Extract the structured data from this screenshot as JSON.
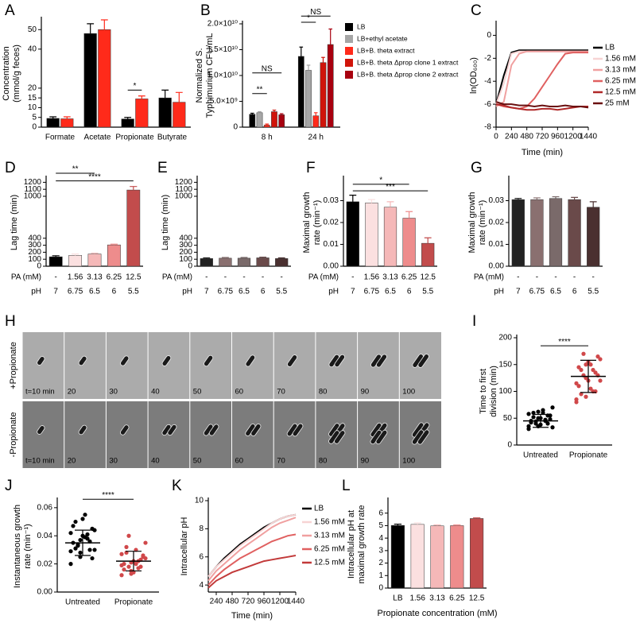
{
  "chart_data": [
    {
      "panel": "A",
      "type": "bar",
      "ylabel": [
        "Concentration",
        "(mmol/g feces)"
      ],
      "categories": [
        "Formate",
        "Acetate",
        "Propionate",
        "Butyrate"
      ],
      "series": [
        {
          "color": "#000000",
          "values": [
            4.5,
            48,
            4.2,
            15
          ],
          "errors": [
            0.8,
            5,
            0.8,
            4
          ]
        },
        {
          "color": "#ff2a1a",
          "values": [
            4.3,
            50,
            14.5,
            12.8
          ],
          "errors": [
            1,
            5,
            1.5,
            5
          ]
        }
      ],
      "ylim": [
        0,
        55
      ],
      "yticks": [
        0,
        5,
        10,
        15,
        20,
        40,
        50
      ],
      "annotations": [
        {
          "text": "*"
        }
      ]
    },
    {
      "panel": "B",
      "type": "bar",
      "ylabel": [
        "Normalized S.",
        "Typhimurium CFU/mL"
      ],
      "categories": [
        "8 h",
        "24 h"
      ],
      "series": [
        {
          "name": "LB",
          "color": "#000000",
          "values": [
            2500000000,
            13700000000
          ],
          "errors": [
            200000000,
            1800000000
          ]
        },
        {
          "name": "LB+ethyl acetate",
          "color": "#a6a6a6",
          "values": [
            2800000000,
            11000000000
          ],
          "errors": [
            200000000,
            1000000000
          ]
        },
        {
          "name": "LB+B. theta extract",
          "color": "#ff2a1a",
          "values": [
            400000000,
            2200000000
          ],
          "errors": [
            200000000,
            600000000
          ]
        },
        {
          "name": "LB+B. theta Δprop clone 1 extract",
          "color": "#d0140a",
          "values": [
            3000000000,
            12500000000
          ],
          "errors": [
            300000000,
            1000000000
          ]
        },
        {
          "name": "LB+B. theta Δprop clone 2 extract",
          "color": "#a8000f",
          "values": [
            2400000000,
            16000000000
          ],
          "errors": [
            200000000,
            3000000000
          ]
        }
      ],
      "ylim": [
        0,
        20000000000
      ],
      "yticks": [
        0,
        {
          "value": 5000000000,
          "label": "5.0×10⁹"
        },
        {
          "value": 10000000000,
          "label": "1.0×10¹⁰"
        },
        {
          "value": 15000000000,
          "label": "1.5×10¹⁰"
        },
        {
          "value": 20000000000,
          "label": "2.0×10¹⁰"
        }
      ],
      "annotations": [
        {
          "text": "NS"
        },
        {
          "text": "**"
        },
        {
          "text": "NS"
        },
        {
          "text": "*"
        }
      ]
    },
    {
      "panel": "C",
      "type": "line",
      "ylabel": [
        "ln(OD₆₀₀)"
      ],
      "xlabel": "Time (min)",
      "x": [
        0,
        120,
        240,
        360,
        480,
        600,
        720,
        840,
        960,
        1080,
        1200,
        1320,
        1440
      ],
      "series": [
        {
          "name": "LB",
          "color": "#000000",
          "values": [
            -6,
            -3.5,
            -1.5,
            -1.3,
            -1.3,
            -1.3,
            -1.3,
            -1.3,
            -1.3,
            -1.3,
            -1.3,
            -1.3,
            -1.3
          ]
        },
        {
          "name": "1.56 mM",
          "color": "#f7d4d4",
          "values": [
            -6,
            -4.2,
            -1.6,
            -1.4,
            -1.4,
            -1.4,
            -1.4,
            -1.4,
            -1.4,
            -1.4,
            -1.4,
            -1.4,
            -1.4
          ]
        },
        {
          "name": "3.13 mM",
          "color": "#f0a0a0",
          "values": [
            -6.2,
            -5.8,
            -2.6,
            -1.6,
            -1.4,
            -1.4,
            -1.4,
            -1.4,
            -1.4,
            -1.4,
            -1.4,
            -1.4,
            -1.4
          ]
        },
        {
          "name": "6.25 mM",
          "color": "#e06060",
          "values": [
            -6,
            -6.2,
            -6.3,
            -6.4,
            -6.2,
            -5.5,
            -4.5,
            -3.5,
            -2.5,
            -1.6,
            -1.5,
            -1.5,
            -1.5
          ]
        },
        {
          "name": "12.5 mM",
          "color": "#b02828",
          "values": [
            -6,
            -6.1,
            -6.3,
            -6.4,
            -6.5,
            -6.5,
            -6.4,
            -6.4,
            -6.5,
            -6.4,
            -6.3,
            -6.2,
            -6.2
          ]
        },
        {
          "name": "25 mM",
          "color": "#6a1010",
          "values": [
            -5.8,
            -6,
            -6,
            -6.1,
            -6.1,
            -6.2,
            -6.1,
            -6.2,
            -6.2,
            -6.1,
            -6.2,
            -6.2,
            -6.3
          ]
        }
      ],
      "xlim": [
        0,
        1440
      ],
      "xticks": [
        0,
        240,
        480,
        720,
        960,
        1200,
        1440
      ],
      "ylim": [
        -8,
        1
      ],
      "yticks": [
        -8,
        -6,
        -4,
        -2,
        0
      ]
    },
    {
      "panel": "D",
      "type": "bar",
      "ylabel": [
        "Lag time (min)"
      ],
      "table": {
        "labels": [
          "PA (mM)",
          "pH"
        ],
        "rows": [
          [
            "-",
            "1.56",
            "3.13",
            "6.25",
            "12.5"
          ],
          [
            "7",
            "6.75",
            "6.5",
            "6",
            "5.5"
          ]
        ]
      },
      "series": [
        {
          "colors": [
            "#000000",
            "#fbe0e0",
            "#f5b8b8",
            "#ee8c8c",
            "#c24c4c"
          ],
          "values": [
            135,
            155,
            175,
            305,
            1090
          ],
          "errors": [
            15,
            20,
            12,
            10,
            50
          ]
        }
      ],
      "ylim": [
        0,
        1250
      ],
      "yticks": [
        0,
        100,
        200,
        300,
        400,
        1000,
        1100,
        1200
      ],
      "annotations": [
        {
          "text": "**"
        },
        {
          "text": "****"
        }
      ]
    },
    {
      "panel": "E",
      "type": "bar",
      "ylabel": [
        "Lag time (min)"
      ],
      "table": {
        "labels": [
          "PA (mM)",
          "pH"
        ],
        "rows": [
          [
            "-",
            "-",
            "-",
            "-",
            "-"
          ],
          [
            "7",
            "6.75",
            "6.5",
            "6",
            "5.5"
          ]
        ]
      },
      "series": [
        {
          "colors": [
            "#222222",
            "#8a7070",
            "#7a6a6a",
            "#6a4a4a",
            "#4a3030"
          ],
          "values": [
            110,
            115,
            115,
            120,
            110
          ],
          "errors": [
            10,
            10,
            10,
            10,
            10
          ]
        }
      ],
      "ylim": [
        0,
        1250
      ],
      "yticks": [
        0,
        100,
        200,
        300,
        400,
        1000,
        1100,
        1200
      ]
    },
    {
      "panel": "F",
      "type": "bar",
      "ylabel": [
        "Maximal growth",
        "rate (min⁻¹)"
      ],
      "table": {
        "labels": [
          "PA (mM)",
          "pH"
        ],
        "rows": [
          [
            "-",
            "1.56",
            "3.13",
            "6.25",
            "12.5"
          ],
          [
            "7",
            "6.75",
            "6.5",
            "6",
            "5.5"
          ]
        ]
      },
      "series": [
        {
          "colors": [
            "#000000",
            "#fbe0e0",
            "#f5b8b8",
            "#ee8c8c",
            "#c24c4c"
          ],
          "values": [
            0.0295,
            0.029,
            0.027,
            0.022,
            0.0105
          ],
          "errors": [
            0.003,
            0.0015,
            0.0025,
            0.003,
            0.0025
          ]
        }
      ],
      "ylim": [
        0,
        0.04
      ],
      "yticks": [
        {
          "value": 0,
          "label": "0.00"
        },
        0.01,
        0.02,
        0.03
      ],
      "annotations": [
        {
          "text": "*"
        },
        {
          "text": "***"
        }
      ]
    },
    {
      "panel": "G",
      "type": "bar",
      "ylabel": [
        "Maximal growth",
        "rate (min⁻¹)"
      ],
      "table": {
        "labels": [
          "PA (mM)",
          "pH"
        ],
        "rows": [
          [
            "-",
            "-",
            "-",
            "-",
            "-"
          ],
          [
            "7",
            "6.75",
            "6.5",
            "6",
            "5.5"
          ]
        ]
      },
      "series": [
        {
          "colors": [
            "#222222",
            "#8a7070",
            "#7a6a6a",
            "#6a4a4a",
            "#4a3030"
          ],
          "values": [
            0.0305,
            0.0305,
            0.031,
            0.0305,
            0.027
          ],
          "errors": [
            0.0005,
            0.0008,
            0.0008,
            0.001,
            0.0025
          ]
        }
      ],
      "ylim": [
        0,
        0.04
      ],
      "yticks": [
        {
          "value": 0,
          "label": "0.00"
        },
        0.01,
        0.02,
        0.03
      ]
    },
    {
      "panel": "I",
      "type": "strip",
      "ylabel": [
        "Time to first",
        "division (min)"
      ],
      "categories": [
        "Untreated",
        "Propionate"
      ],
      "series": [
        {
          "color": "#000000",
          "values": [
            30,
            35,
            40,
            45,
            50,
            55,
            60,
            65,
            70,
            40,
            45,
            35,
            50,
            55,
            42,
            38,
            48,
            52,
            60,
            33,
            44,
            47,
            58,
            62
          ],
          "mean": 45,
          "sd": 12
        },
        {
          "color": "#d0484a",
          "values": [
            80,
            90,
            100,
            110,
            120,
            130,
            140,
            150,
            160,
            170,
            100,
            115,
            125,
            135,
            145,
            155,
            165,
            95,
            105,
            120,
            130,
            140,
            85,
            150
          ],
          "mean": 128,
          "sd": 30
        }
      ],
      "ylim": [
        0,
        200
      ],
      "yticks": [
        0,
        50,
        100,
        150,
        200
      ],
      "annotations": [
        {
          "text": "****"
        }
      ]
    },
    {
      "panel": "J",
      "type": "strip",
      "ylabel": [
        "Instantaneous growth",
        "rate (min⁻¹)"
      ],
      "categories": [
        "Untreated",
        "Propionate"
      ],
      "series": [
        {
          "color": "#000000",
          "values": [
            0.02,
            0.025,
            0.03,
            0.035,
            0.04,
            0.045,
            0.05,
            0.055,
            0.03,
            0.033,
            0.038,
            0.042,
            0.028,
            0.036,
            0.047,
            0.052,
            0.024,
            0.031,
            0.039,
            0.044,
            0.034,
            0.041,
            0.029,
            0.037
          ],
          "mean": 0.035,
          "sd": 0.009
        },
        {
          "color": "#d0484a",
          "values": [
            0.012,
            0.015,
            0.018,
            0.02,
            0.022,
            0.025,
            0.028,
            0.03,
            0.035,
            0.04,
            0.017,
            0.019,
            0.021,
            0.023,
            0.016,
            0.014,
            0.026,
            0.032,
            0.02,
            0.024,
            0.018,
            0.022,
            0.027,
            0.013
          ],
          "mean": 0.022,
          "sd": 0.007
        }
      ],
      "ylim": [
        0,
        0.065
      ],
      "yticks": [
        {
          "value": 0,
          "label": "0.00"
        },
        0.02,
        0.04,
        0.06
      ],
      "annotations": [
        {
          "text": "****"
        }
      ]
    },
    {
      "panel": "K",
      "type": "line",
      "ylabel": [
        "Intracellular pH"
      ],
      "xlabel": "Time (min)",
      "x": [
        120,
        240,
        360,
        480,
        600,
        720,
        840,
        960,
        1080,
        1200,
        1320,
        1440
      ],
      "series": [
        {
          "name": "LB",
          "color": "#000000",
          "values": [
            4.6,
            5.3,
            5.9,
            6.4,
            6.9,
            7.3,
            7.7,
            8.1,
            8.4,
            8.7,
            8.9,
            9.0
          ]
        },
        {
          "name": "1.56 mM",
          "color": "#f7d4d4",
          "values": [
            4.6,
            5.3,
            5.8,
            6.3,
            6.8,
            7.2,
            7.6,
            8.0,
            8.4,
            8.7,
            8.9,
            9.0
          ]
        },
        {
          "name": "3.13 mM",
          "color": "#f0a0a0",
          "values": [
            4.3,
            5.0,
            5.5,
            6.0,
            6.5,
            6.9,
            7.3,
            7.7,
            8.1,
            8.4,
            8.6,
            8.8
          ]
        },
        {
          "name": "6.25 mM",
          "color": "#e06060",
          "values": [
            4.0,
            4.6,
            5.1,
            5.5,
            5.9,
            6.2,
            6.5,
            6.8,
            7.1,
            7.3,
            7.5,
            7.6
          ]
        },
        {
          "name": "12.5 mM",
          "color": "#c23a3a",
          "values": [
            3.8,
            4.3,
            4.6,
            4.9,
            5.1,
            5.3,
            5.5,
            5.7,
            5.8,
            5.9,
            6.0,
            6.1
          ]
        }
      ],
      "xlim": [
        120,
        1440
      ],
      "xticks": [
        240,
        480,
        720,
        960,
        1200,
        1440
      ],
      "ylim": [
        3.5,
        10
      ],
      "yticks": [
        4,
        6,
        8,
        10
      ]
    },
    {
      "panel": "L",
      "type": "bar",
      "ylabel": [
        "Intracellular pH at",
        "maximal growth rate"
      ],
      "xlabel": "Propionate concentration (mM)",
      "categories": [
        "LB",
        "1.56",
        "3.13",
        "6.25",
        "12.5"
      ],
      "series": [
        {
          "colors": [
            "#000000",
            "#fbe0e0",
            "#f5b8b8",
            "#ee8c8c",
            "#c24c4c"
          ],
          "values": [
            5.02,
            5.1,
            4.98,
            5.0,
            5.57
          ],
          "errors": [
            0.1,
            0.12,
            0.07,
            0.05,
            0.05
          ]
        }
      ],
      "ylim": [
        0,
        7
      ],
      "yticks": [
        0,
        1,
        2,
        3,
        4,
        5,
        6
      ]
    }
  ],
  "microscopy": {
    "panel": "H",
    "rows": [
      {
        "label": "+Propionate",
        "frames": [
          "t=10 min",
          "20",
          "30",
          "40",
          "50",
          "60",
          "70",
          "80",
          "90",
          "100"
        ]
      },
      {
        "label": "-Propionate",
        "frames": [
          "t=10 min",
          "20",
          "30",
          "40",
          "50",
          "60",
          "70",
          "80",
          "90",
          "100"
        ]
      }
    ]
  }
}
